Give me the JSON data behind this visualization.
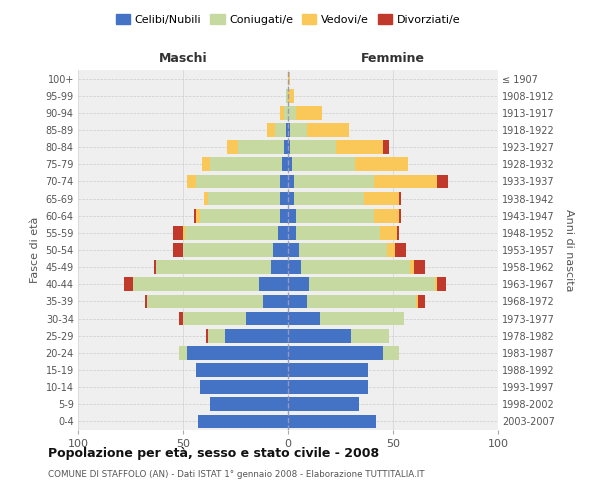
{
  "age_groups": [
    "0-4",
    "5-9",
    "10-14",
    "15-19",
    "20-24",
    "25-29",
    "30-34",
    "35-39",
    "40-44",
    "45-49",
    "50-54",
    "55-59",
    "60-64",
    "65-69",
    "70-74",
    "75-79",
    "80-84",
    "85-89",
    "90-94",
    "95-99",
    "100+"
  ],
  "birth_years": [
    "2003-2007",
    "1998-2002",
    "1993-1997",
    "1988-1992",
    "1983-1987",
    "1978-1982",
    "1973-1977",
    "1968-1972",
    "1963-1967",
    "1958-1962",
    "1953-1957",
    "1948-1952",
    "1943-1947",
    "1938-1942",
    "1933-1937",
    "1928-1932",
    "1923-1927",
    "1918-1922",
    "1913-1917",
    "1908-1912",
    "≤ 1907"
  ],
  "males_celibi": [
    43,
    37,
    42,
    44,
    48,
    30,
    20,
    12,
    14,
    8,
    7,
    5,
    4,
    4,
    4,
    3,
    2,
    1,
    0,
    0,
    0
  ],
  "males_coniugati": [
    0,
    0,
    0,
    0,
    4,
    8,
    30,
    55,
    60,
    55,
    43,
    44,
    38,
    34,
    40,
    34,
    22,
    5,
    2,
    1,
    0
  ],
  "males_vedovi": [
    0,
    0,
    0,
    0,
    0,
    0,
    0,
    0,
    0,
    0,
    0,
    1,
    2,
    2,
    4,
    4,
    5,
    4,
    2,
    0,
    0
  ],
  "males_divorziati": [
    0,
    0,
    0,
    0,
    0,
    1,
    2,
    1,
    4,
    1,
    5,
    5,
    1,
    0,
    0,
    0,
    0,
    0,
    0,
    0,
    0
  ],
  "females_nubili": [
    42,
    34,
    38,
    38,
    45,
    30,
    15,
    9,
    10,
    6,
    5,
    4,
    4,
    3,
    3,
    2,
    1,
    1,
    0,
    0,
    0
  ],
  "females_coniugate": [
    0,
    0,
    0,
    0,
    8,
    18,
    40,
    52,
    60,
    52,
    42,
    40,
    37,
    33,
    38,
    30,
    22,
    8,
    4,
    0,
    0
  ],
  "females_vedove": [
    0,
    0,
    0,
    0,
    0,
    0,
    0,
    1,
    1,
    2,
    4,
    8,
    12,
    17,
    30,
    25,
    22,
    20,
    12,
    3,
    1
  ],
  "females_divorziate": [
    0,
    0,
    0,
    0,
    0,
    0,
    0,
    3,
    4,
    5,
    5,
    1,
    1,
    1,
    5,
    0,
    3,
    0,
    0,
    0,
    0
  ],
  "color_celibi": "#4472C4",
  "color_coniugati": "#C5D9A0",
  "color_vedovi": "#FAC858",
  "color_divorziati": "#C0392B",
  "title": "Popolazione per età, sesso e stato civile - 2008",
  "subtitle": "COMUNE DI STAFFOLO (AN) - Dati ISTAT 1° gennaio 2008 - Elaborazione TUTTITALIA.IT",
  "legend_labels": [
    "Celibi/Nubili",
    "Coniugati/e",
    "Vedovi/e",
    "Divorziati/e"
  ],
  "label_maschi": "Maschi",
  "label_femmine": "Femmine",
  "ylabel_left": "Fasce di età",
  "ylabel_right": "Anni di nascita",
  "xlim": 100,
  "bg_color": "#ffffff",
  "plot_bg": "#efefef",
  "grid_color": "#cccccc"
}
